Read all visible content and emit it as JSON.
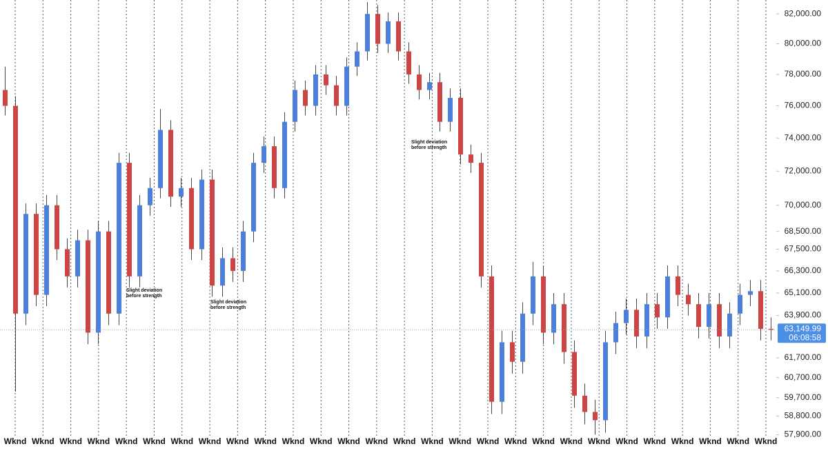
{
  "chart_data": {
    "type": "candlestick",
    "log": true,
    "ylim": [
      57850,
      82950
    ],
    "yticks": [
      {
        "value": 82000,
        "label": "82,000.00"
      },
      {
        "value": 80000,
        "label": "80,000.00"
      },
      {
        "value": 78000,
        "label": "78,000.00"
      },
      {
        "value": 76000,
        "label": "76,000.00"
      },
      {
        "value": 74000,
        "label": "74,000.00"
      },
      {
        "value": 72000,
        "label": "72,000.00"
      },
      {
        "value": 70000,
        "label": "70,000.00"
      },
      {
        "value": 68500,
        "label": "68,500.00"
      },
      {
        "value": 67500,
        "label": "67,500.00"
      },
      {
        "value": 66300,
        "label": "66,300.00"
      },
      {
        "value": 65100,
        "label": "65,100.00"
      },
      {
        "value": 63900,
        "label": "63,900.00"
      },
      {
        "value": 61700,
        "label": "61,700.00"
      },
      {
        "value": 60700,
        "label": "60,700.00"
      },
      {
        "value": 59700,
        "label": "59,700.00"
      },
      {
        "value": 58800,
        "label": "58,800.00"
      },
      {
        "value": 57900,
        "label": "57,900.00"
      }
    ],
    "up_color": "#4c7fdc",
    "down_color": "#cc4444",
    "candles": {
      "open": [
        77000,
        76000,
        64000,
        69500,
        65000,
        70000,
        67500,
        66000,
        68000,
        63000,
        68500,
        64000,
        72500,
        66000,
        70000,
        71000,
        74500,
        70500,
        71000,
        67500,
        71500,
        65500,
        67000,
        66300,
        68500,
        72500,
        73500,
        71000,
        75000,
        77000,
        76000,
        78000,
        77300,
        76000,
        78500,
        79500,
        82000,
        80000,
        81500,
        79500,
        78000,
        77000,
        77500,
        75000,
        76500,
        73000,
        72500,
        66000,
        59500,
        62500,
        61500,
        64000,
        66000,
        63000,
        64500,
        62000,
        59800,
        59000,
        58600,
        62500,
        63500,
        64200,
        62800,
        64500,
        63800,
        66000,
        65000,
        64500,
        63300,
        64500,
        62800,
        64000,
        65000,
        65200,
        63200
      ],
      "high": [
        78500,
        76600,
        70100,
        70100,
        70600,
        70600,
        68100,
        68600,
        68600,
        69100,
        69100,
        73100,
        73100,
        70600,
        71600,
        75800,
        75100,
        71600,
        71600,
        72100,
        72100,
        67600,
        67600,
        69100,
        73100,
        74100,
        74100,
        75600,
        77600,
        77600,
        78600,
        78600,
        77900,
        79100,
        80100,
        82800,
        82600,
        82100,
        82100,
        80100,
        78600,
        78100,
        78100,
        77100,
        77100,
        73600,
        73100,
        66600,
        63100,
        63100,
        64600,
        66800,
        66600,
        65100,
        65100,
        62600,
        60400,
        59600,
        63100,
        64100,
        64800,
        64800,
        65100,
        65100,
        66600,
        66600,
        65600,
        65100,
        65100,
        65100,
        64600,
        65600,
        65800,
        65800,
        63800
      ],
      "low": [
        75400,
        60000,
        63400,
        64400,
        64400,
        66900,
        65400,
        65400,
        62400,
        62400,
        63400,
        63400,
        65400,
        65400,
        69400,
        70400,
        69900,
        69900,
        66900,
        66900,
        64900,
        64900,
        65700,
        65700,
        67900,
        71900,
        70400,
        70400,
        74400,
        75400,
        75400,
        76700,
        75400,
        75400,
        77900,
        78900,
        79400,
        79400,
        78900,
        77400,
        76400,
        76400,
        74400,
        74400,
        72400,
        71900,
        65400,
        58900,
        58900,
        60900,
        60900,
        63400,
        62400,
        62400,
        61400,
        59200,
        58400,
        57900,
        58000,
        61900,
        62900,
        62200,
        62200,
        63200,
        63200,
        64400,
        63900,
        62700,
        62700,
        62200,
        62200,
        63400,
        64400,
        62600,
        62600
      ],
      "close": [
        76000,
        64000,
        69500,
        65000,
        70000,
        67500,
        66000,
        68000,
        63000,
        68500,
        64000,
        72500,
        66000,
        70000,
        71000,
        74500,
        70500,
        71000,
        67500,
        71500,
        65500,
        67000,
        66300,
        68500,
        72500,
        73500,
        71000,
        75000,
        77000,
        76000,
        78000,
        77300,
        76000,
        78500,
        79500,
        82000,
        80000,
        81500,
        79500,
        78000,
        77000,
        77500,
        75000,
        76500,
        73000,
        72500,
        66000,
        59500,
        62500,
        61500,
        64000,
        66000,
        63000,
        64500,
        62000,
        59800,
        59000,
        58600,
        62500,
        63500,
        64200,
        62800,
        64500,
        63800,
        66000,
        65000,
        64500,
        63300,
        64500,
        62800,
        64000,
        65000,
        65200,
        63200,
        63149.99
      ]
    },
    "xlabels": [
      "Wknd",
      "Wknd",
      "Wknd",
      "Wknd",
      "Wknd",
      "Wknd",
      "Wknd",
      "Wknd",
      "Wknd",
      "Wknd",
      "Wknd",
      "Wknd",
      "Wknd",
      "Wknd",
      "Wknd",
      "Wknd",
      "Wknd",
      "Wknd",
      "Wknd",
      "Wknd",
      "Wknd",
      "Wknd",
      "Wknd",
      "Wknd",
      "Wknd",
      "Wknd",
      "Wknd",
      "Wknd"
    ],
    "annotations": [
      [
        "Slight deviation",
        "before strength"
      ],
      [
        "Slight deviation",
        "before strength"
      ],
      [
        "Slight deviation",
        "before strength"
      ]
    ],
    "last_price": {
      "value": 63149.99,
      "label": "63,149.99"
    },
    "countdown": "06:08:58"
  }
}
